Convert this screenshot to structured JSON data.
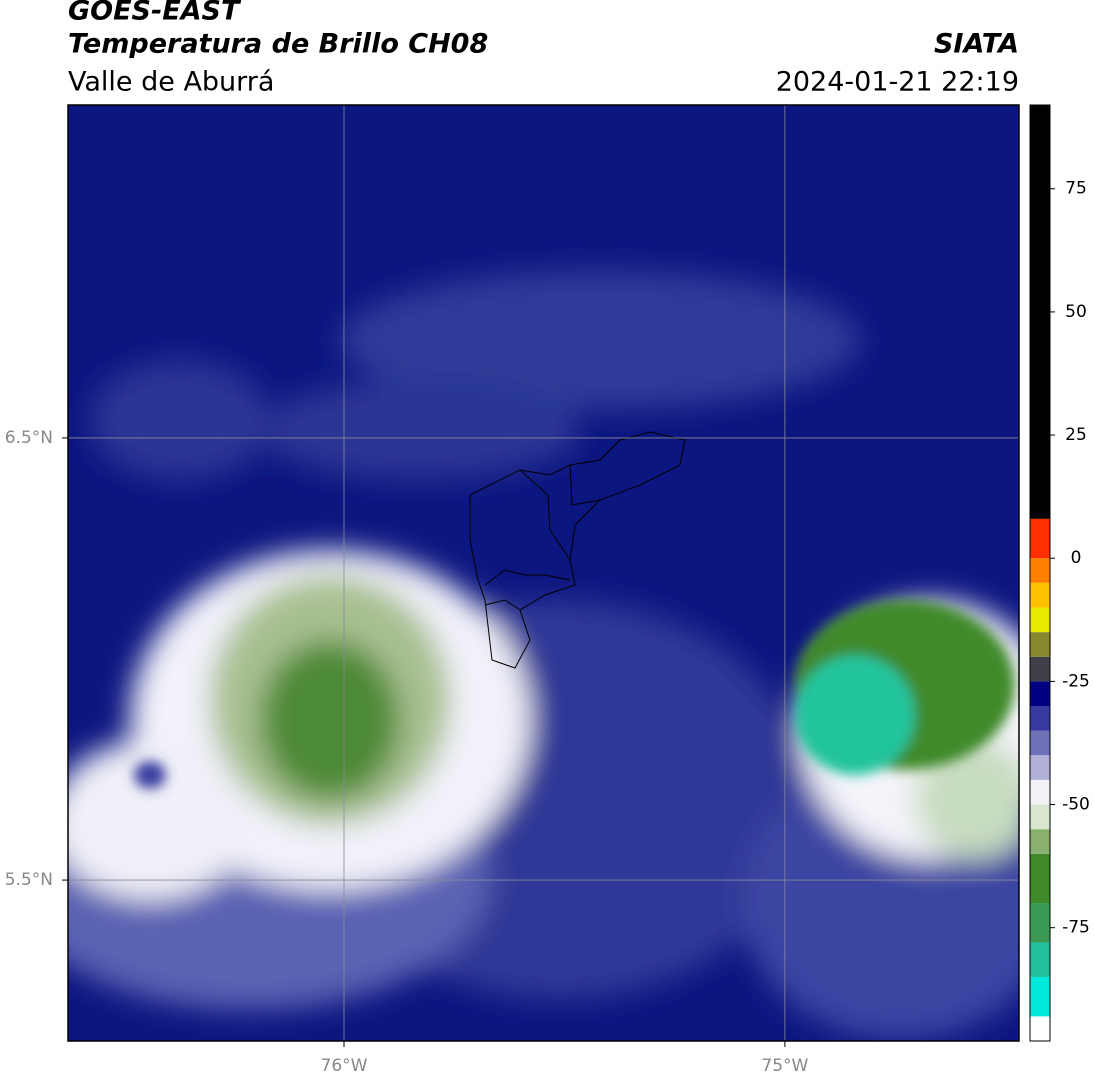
{
  "header": {
    "title": "GOES-EAST",
    "subtitle": "Temperatura de Brillo CH08",
    "region": "Valle de Aburrá",
    "source": "SIATA",
    "datetime": "2024-01-21 22:19"
  },
  "map": {
    "xlim": [
      -76.626,
      -74.469
    ],
    "ylim": [
      5.136,
      7.253
    ],
    "xticks": [
      {
        "value": -76,
        "label": "76°W"
      },
      {
        "value": -75,
        "label": "75°W"
      }
    ],
    "yticks": [
      {
        "value": 6.5,
        "label": "6.5°N"
      },
      {
        "value": 5.5,
        "label": "5.5°N"
      }
    ],
    "grid": true
  },
  "colorbar": {
    "lim": [
      -98,
      92
    ],
    "ticks": [
      75,
      50,
      25,
      0,
      -25,
      -50,
      -75
    ],
    "levels": [
      -98,
      -93,
      -85,
      -78,
      -70,
      -60,
      -55,
      -50,
      -45,
      -40,
      -35,
      -30,
      -25,
      -20,
      -15,
      -10,
      -5,
      0,
      8,
      92
    ],
    "colors": [
      "#ffffff",
      "#00e8d8",
      "#20c09a",
      "#3a9a55",
      "#3f8a2a",
      "#8ab070",
      "#d8e6d0",
      "#f2f2f8",
      "#b0b0d8",
      "#6f70b8",
      "#3838a0",
      "#000080",
      "#404048",
      "#888830",
      "#e8e800",
      "#ffc000",
      "#ff8000",
      "#ff3000",
      "#000000"
    ]
  }
}
